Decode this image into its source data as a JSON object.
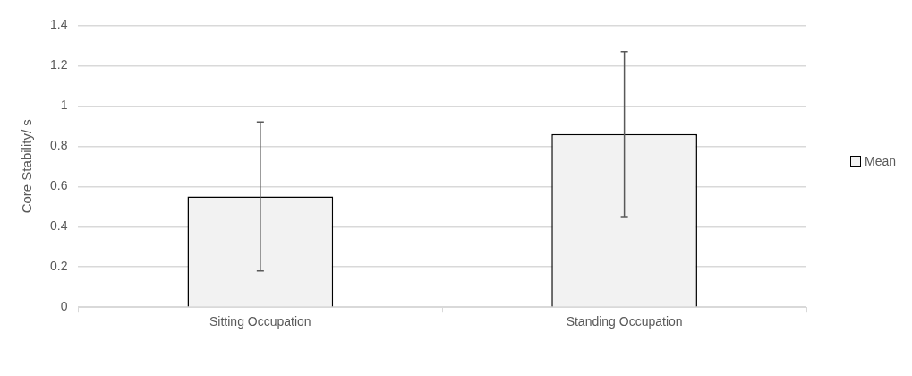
{
  "chart_data": {
    "type": "bar",
    "ylabel": "Core Stability/ s",
    "categories": [
      "Sitting Occupation",
      "Standing Occupation"
    ],
    "series": [
      {
        "name": "Mean",
        "color": "#f2f2f2",
        "values": [
          0.55,
          0.86
        ],
        "errors": [
          [
            0.18,
            0.92
          ],
          [
            0.45,
            1.27
          ]
        ]
      }
    ],
    "ylim": [
      0,
      1.4
    ],
    "yticks": [
      0,
      0.2,
      0.4,
      0.6,
      0.8,
      1,
      1.2,
      1.4
    ],
    "grid": "y",
    "legend": "right"
  }
}
